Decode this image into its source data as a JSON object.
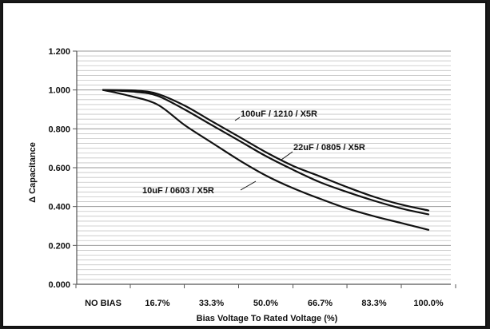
{
  "chart_data": {
    "type": "line",
    "title": "",
    "xlabel": "Bias Voltage To Rated Voltage (%)",
    "ylabel": "Δ Capacitance",
    "categories": [
      "NO BIAS",
      "16.7%",
      "33.3%",
      "50.0%",
      "66.7%",
      "83.3%",
      "100.0%"
    ],
    "x_values": [
      0,
      16.7,
      33.3,
      50.0,
      66.7,
      83.3,
      100.0
    ],
    "ylim": [
      0.0,
      1.2
    ],
    "y_ticks": [
      "0.000",
      "0.200",
      "0.400",
      "0.600",
      "0.800",
      "1.000",
      "1.200"
    ],
    "grid": true,
    "line_color": "#111111",
    "series": [
      {
        "name": "100uF / 1210 /  X5R",
        "x": [
          0,
          10,
          16.7,
          25,
          33.3,
          41.7,
          50,
          58.3,
          66.7,
          75,
          83.3,
          91.7,
          100
        ],
        "values": [
          1.0,
          0.997,
          0.98,
          0.92,
          0.84,
          0.76,
          0.68,
          0.61,
          0.555,
          0.5,
          0.45,
          0.41,
          0.38
        ]
      },
      {
        "name": "22uF / 0805 /  X5R",
        "x": [
          0,
          10,
          16.7,
          25,
          33.3,
          41.7,
          50,
          58.3,
          66.7,
          75,
          83.3,
          91.7,
          100
        ],
        "values": [
          1.0,
          0.99,
          0.97,
          0.9,
          0.82,
          0.74,
          0.66,
          0.59,
          0.525,
          0.475,
          0.43,
          0.39,
          0.36
        ]
      },
      {
        "name": "10uF / 0603 /  X5R",
        "x": [
          0,
          8,
          16.7,
          25,
          33.3,
          41.7,
          50,
          58.3,
          66.7,
          75,
          83.3,
          91.7,
          100
        ],
        "values": [
          1.0,
          0.97,
          0.925,
          0.82,
          0.73,
          0.64,
          0.56,
          0.495,
          0.44,
          0.39,
          0.35,
          0.315,
          0.28
        ]
      }
    ]
  }
}
